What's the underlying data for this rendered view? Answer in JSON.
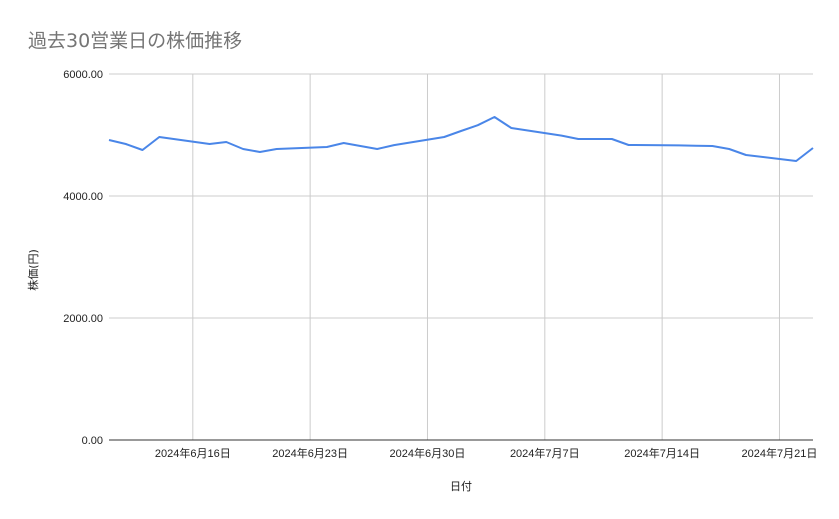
{
  "chart_data": {
    "type": "line",
    "title": "過去30営業日の株価推移",
    "xlabel": "日付",
    "ylabel": "株価(円)",
    "ylim": [
      0,
      6000
    ],
    "yticks": [
      "0.00",
      "2000.00",
      "4000.00",
      "6000.00"
    ],
    "ytick_values": [
      0,
      2000,
      4000,
      6000
    ],
    "xlim": [
      "2024-06-11",
      "2024-07-23"
    ],
    "xticks": [
      {
        "date": "2024-06-16",
        "label": "2024年6月16日"
      },
      {
        "date": "2024-06-23",
        "label": "2024年6月23日"
      },
      {
        "date": "2024-06-30",
        "label": "2024年6月30日"
      },
      {
        "date": "2024-07-07",
        "label": "2024年7月7日"
      },
      {
        "date": "2024-07-14",
        "label": "2024年7月14日"
      },
      {
        "date": "2024-07-21",
        "label": "2024年7月21日"
      }
    ],
    "grid": true,
    "legend": "none",
    "color": "#4a86e8",
    "series": [
      {
        "x": [
          "2024-06-11",
          "2024-06-12",
          "2024-06-13",
          "2024-06-14",
          "2024-06-17",
          "2024-06-18",
          "2024-06-19",
          "2024-06-20",
          "2024-06-21",
          "2024-06-24",
          "2024-06-25",
          "2024-06-26",
          "2024-06-27",
          "2024-06-28",
          "2024-07-01",
          "2024-07-02",
          "2024-07-03",
          "2024-07-04",
          "2024-07-05",
          "2024-07-08",
          "2024-07-09",
          "2024-07-10",
          "2024-07-11",
          "2024-07-12",
          "2024-07-15",
          "2024-07-16",
          "2024-07-17",
          "2024-07-18",
          "2024-07-19",
          "2024-07-22",
          "2024-07-23"
        ],
        "values": [
          4918,
          4852,
          4754,
          4967,
          4852,
          4885,
          4770,
          4721,
          4770,
          4803,
          4869,
          4820,
          4770,
          4835,
          4967,
          5066,
          5160,
          5295,
          5115,
          4990,
          4934,
          4934,
          4934,
          4836,
          4830,
          4825,
          4820,
          4770,
          4672,
          4574,
          4787
        ]
      }
    ]
  }
}
